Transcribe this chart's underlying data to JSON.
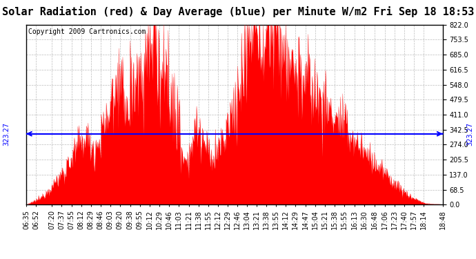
{
  "title": "Solar Radiation (red) & Day Average (blue) per Minute W/m2 Fri Sep 18 18:53",
  "copyright": "Copyright 2009 Cartronics.com",
  "y_ticks": [
    0.0,
    68.5,
    137.0,
    205.5,
    274.0,
    342.5,
    411.0,
    479.5,
    548.0,
    616.5,
    685.0,
    753.5,
    822.0
  ],
  "y_max": 822.0,
  "y_min": 0.0,
  "day_average": 323.27,
  "avg_label": "323.27",
  "x_labels": [
    "06:35",
    "06:52",
    "07:20",
    "07:37",
    "07:55",
    "08:12",
    "08:29",
    "08:46",
    "09:03",
    "09:20",
    "09:38",
    "09:55",
    "10:12",
    "10:29",
    "10:46",
    "11:03",
    "11:21",
    "11:38",
    "11:55",
    "12:12",
    "12:29",
    "12:46",
    "13:04",
    "13:21",
    "13:38",
    "13:55",
    "14:12",
    "14:29",
    "14:47",
    "15:04",
    "15:21",
    "15:38",
    "15:55",
    "16:13",
    "16:30",
    "16:48",
    "17:06",
    "17:23",
    "17:40",
    "17:57",
    "18:14",
    "18:48"
  ],
  "background_color": "#ffffff",
  "plot_bg_color": "#ffffff",
  "fill_color": "#ff0000",
  "line_color": "#ff0000",
  "avg_line_color": "#0000ff",
  "title_fontsize": 11,
  "copyright_fontsize": 7,
  "tick_fontsize": 7,
  "grid_color": "#bbbbbb",
  "border_color": "#000000"
}
